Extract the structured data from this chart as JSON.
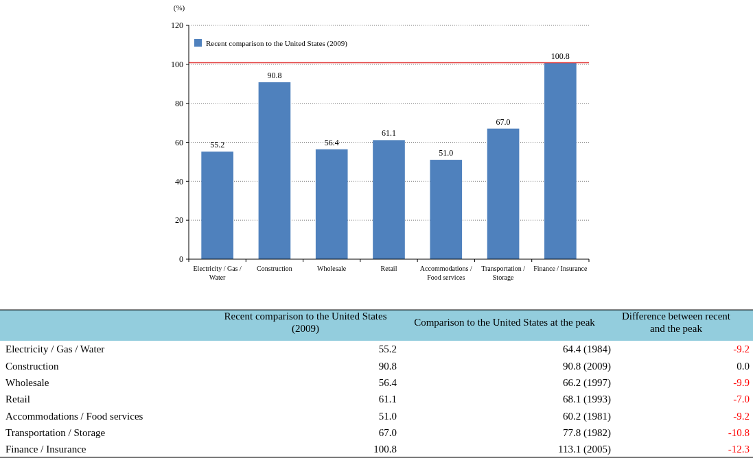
{
  "chart_data": [
    {
      "type": "bar",
      "ylabel": "(%)",
      "categories": [
        "Electricity / Gas / Water",
        "Construction",
        "Wholesale",
        "Retail",
        "Accommodations / Food services",
        "Transportation / Storage",
        "Finance / Insurance"
      ],
      "series": [
        {
          "name": "Recent comparison to the United States (2009)",
          "color": "#4f81bd",
          "values": [
            55.2,
            90.8,
            56.4,
            61.1,
            51.0,
            67.0,
            100.8
          ],
          "value_labels": [
            "55.2",
            "90.8",
            "56.4",
            "61.1",
            "51.0",
            "67.0",
            "100.8"
          ]
        }
      ],
      "ylim": [
        0,
        120
      ],
      "yticks": [
        0,
        20,
        40,
        60,
        80,
        100,
        120
      ],
      "grid": "y",
      "legend": "top left",
      "ref_lines": [
        {
          "axis": "y",
          "value": 100.8,
          "color": "#e03030"
        }
      ]
    },
    {
      "type": "other",
      "categories": [
        "Electricity / Gas / Water",
        "Construction",
        "Wholesale",
        "Retail",
        "Accommodations / Food services",
        "Transportation / Storage",
        "Finance / Insurance"
      ],
      "series": [
        {
          "name": "Recent comparison to the United States (2009)",
          "color": "#000000",
          "values": [
            55.2,
            90.8,
            56.4,
            61.1,
            51.0,
            67.0,
            100.8
          ],
          "value_labels": [
            "55.2",
            "90.8",
            "56.4",
            "61.1",
            "51.0",
            "67.0",
            "100.8"
          ]
        },
        {
          "name": "Comparison to the United States at the peak",
          "color": "#000000",
          "values": [
            64.4,
            90.8,
            66.2,
            68.1,
            60.2,
            77.8,
            113.1
          ],
          "value_labels": [
            "64.4 (1984)",
            "90.8 (2009)",
            "66.2 (1997)",
            "68.1 (1993)",
            "60.2 (1981)",
            "77.8 (1982)",
            "113.1 (2005)"
          ]
        },
        {
          "name": "Difference between recent and the peak",
          "colors": [
            "#ff0000",
            "#000000",
            "#ff0000",
            "#ff0000",
            "#ff0000",
            "#ff0000",
            "#ff0000"
          ],
          "values": [
            -9.2,
            0.0,
            -9.9,
            -7.0,
            -9.2,
            -10.8,
            -12.3
          ],
          "value_labels": [
            "-9.2",
            "0.0",
            "-9.9",
            "-7.0",
            "-9.2",
            "-10.8",
            "-12.3"
          ]
        }
      ]
    }
  ]
}
